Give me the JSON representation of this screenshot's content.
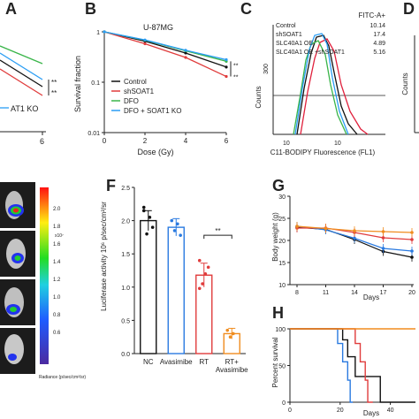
{
  "panels": {
    "A": "A",
    "B": "B",
    "C": "C",
    "D": "D",
    "F": "F",
    "G": "G",
    "H": "H"
  },
  "panelA": {
    "xtick": "6",
    "legend_partial": "AT1 KO",
    "sig": [
      "**",
      "**"
    ]
  },
  "chart_data": [
    {
      "id": "B",
      "type": "line",
      "title": "U-87MG",
      "xlabel": "Dose (Gy)",
      "ylabel": "Survival fraction",
      "x": [
        0,
        2,
        4,
        6
      ],
      "xticks": [
        "0",
        "2",
        "4",
        "6"
      ],
      "xlim": [
        0,
        6
      ],
      "ylim": [
        0.01,
        1
      ],
      "log_y": true,
      "yticks": [
        "0.01",
        "0.1",
        "1"
      ],
      "series": [
        {
          "name": "Control",
          "color": "#111111",
          "values": [
            1.0,
            0.65,
            0.38,
            0.2
          ]
        },
        {
          "name": "shSOAT1",
          "color": "#e03c3c",
          "values": [
            1.0,
            0.58,
            0.31,
            0.13
          ]
        },
        {
          "name": "DFO",
          "color": "#3ab54a",
          "values": [
            1.0,
            0.68,
            0.42,
            0.26
          ]
        },
        {
          "name": "DFO + SOAT1 KO",
          "color": "#2a9df4",
          "values": [
            1.0,
            0.69,
            0.43,
            0.28
          ]
        }
      ],
      "sig": [
        "**",
        "**"
      ],
      "legend": "bottom-left"
    },
    {
      "id": "C",
      "type": "area",
      "xlabel": "C11-BODIPY Fluorescence (FL1)",
      "ylabel": "Counts",
      "header": "FITC-A+",
      "xtick_labels": [
        "10",
        "10"
      ],
      "ytick": "300",
      "entries": [
        {
          "name": "Control",
          "value": "10.14",
          "color": "#111111"
        },
        {
          "name": "shSOAT1",
          "value": "17.4",
          "color": "#e0203c"
        },
        {
          "name": "SLC40A1 OE",
          "value": "4.89",
          "color": "#3ab54a"
        },
        {
          "name": "SLC40A1 OE +shSOAT1",
          "value": "5.16",
          "color": "#2a9df4"
        }
      ]
    },
    {
      "id": "F",
      "type": "bar",
      "ylabel": "Luciferase activity 10⁶ p/sec/cm²/sr",
      "categories": [
        "NC",
        "Avasimibe",
        "RT",
        "RT+ Avasimibe"
      ],
      "values": [
        2.0,
        1.9,
        1.18,
        0.3
      ],
      "errors": [
        0.15,
        0.13,
        0.18,
        0.08
      ],
      "colors": [
        "#111111",
        "#2a7ae0",
        "#e03c3c",
        "#f08c1e"
      ],
      "points": [
        [
          2.2,
          1.8,
          2.05,
          1.9,
          2.15
        ],
        [
          2.0,
          1.85,
          1.95,
          1.78
        ],
        [
          1.4,
          1.05,
          1.2,
          1.3,
          0.98
        ],
        [
          0.35,
          0.25,
          0.3
        ]
      ],
      "ylim": [
        0,
        2.5
      ],
      "yticks": [
        "0.0",
        "0.5",
        "1.0",
        "1.5",
        "2.0",
        "2.5"
      ],
      "sig": "**"
    },
    {
      "id": "G",
      "type": "line",
      "xlabel": "Days",
      "ylabel": "Body weight (g)",
      "x": [
        8,
        11,
        14,
        17,
        20
      ],
      "xticks": [
        "8",
        "11",
        "14",
        "17",
        "20"
      ],
      "ylim": [
        10,
        30
      ],
      "yticks": [
        "10",
        "15",
        "20",
        "25",
        "30"
      ],
      "series": [
        {
          "color": "#111111",
          "values": [
            23.0,
            22.5,
            20.2,
            17.5,
            16.2
          ]
        },
        {
          "color": "#2a7ae0",
          "values": [
            23.2,
            22.4,
            20.5,
            18.2,
            17.6
          ]
        },
        {
          "color": "#e03c3c",
          "values": [
            22.8,
            22.8,
            21.8,
            20.6,
            20.2
          ]
        },
        {
          "color": "#f08c1e",
          "values": [
            23.2,
            22.7,
            22.2,
            22.0,
            21.8
          ]
        }
      ]
    },
    {
      "id": "H",
      "type": "line",
      "xlabel": "Days",
      "ylabel": "Percent survival",
      "xticks": [
        "0",
        "20",
        "40"
      ],
      "yticks": [
        "0",
        "50",
        "100"
      ],
      "xlim": [
        0,
        50
      ],
      "ylim": [
        0,
        100
      ],
      "series": [
        {
          "color": "#2a7ae0",
          "x": [
            0,
            19,
            19,
            21,
            21,
            23,
            23,
            24,
            24,
            25
          ],
          "y": [
            100,
            100,
            80,
            80,
            55,
            55,
            30,
            30,
            0,
            0
          ]
        },
        {
          "color": "#111111",
          "x": [
            0,
            21,
            21,
            23,
            23,
            26,
            26,
            36,
            36,
            50
          ],
          "y": [
            100,
            100,
            85,
            85,
            62,
            62,
            35,
            35,
            0,
            0
          ]
        },
        {
          "color": "#e03c3c",
          "x": [
            0,
            26,
            26,
            28,
            28,
            30,
            30,
            31,
            31,
            33
          ],
          "y": [
            100,
            100,
            80,
            80,
            55,
            55,
            30,
            30,
            0,
            0
          ]
        },
        {
          "color": "#f08c1e",
          "x": [
            0,
            28,
            28,
            50
          ],
          "y": [
            100,
            100,
            100,
            100
          ]
        }
      ]
    }
  ],
  "imaging": {
    "scale_max": "2.0",
    "scale_ticks": [
      "1.8",
      "1.6",
      "1.4",
      "1.2",
      "1.0",
      "0.8",
      "0.6"
    ],
    "scale_exp": "x10⁷",
    "radiance_label": "Radiance (p/sec/cm²/sr)"
  }
}
